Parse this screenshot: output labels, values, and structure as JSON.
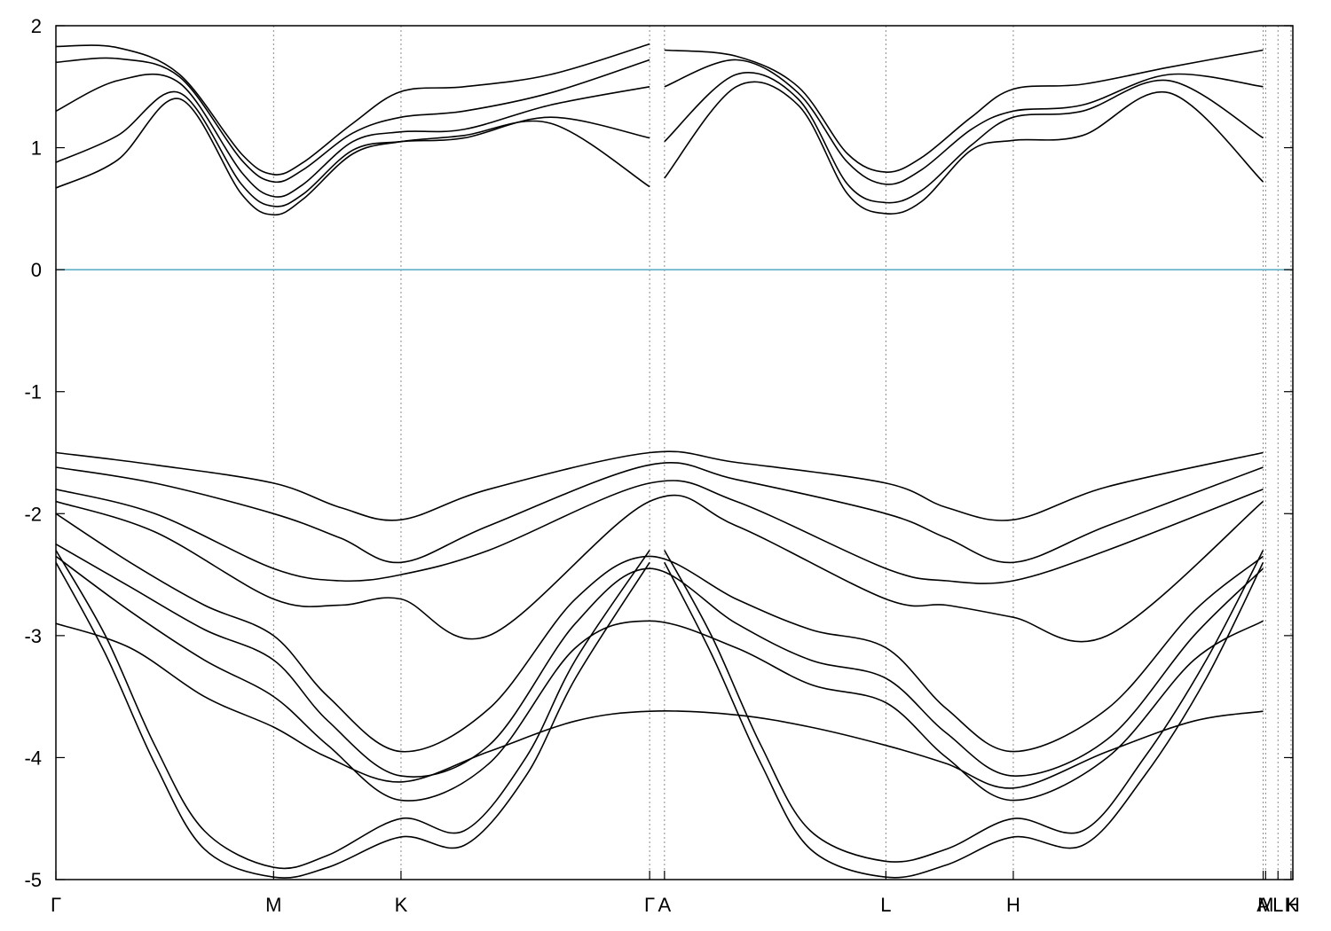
{
  "chart_data": {
    "type": "line",
    "title": "",
    "xlabel": "",
    "ylabel": "",
    "x_ticks": [
      {
        "label": "Γ",
        "x": 0.0
      },
      {
        "label": "M",
        "x": 0.176
      },
      {
        "label": "K",
        "x": 0.279
      },
      {
        "label": "Γ",
        "x": 0.48
      },
      {
        "label": "A",
        "x": 0.492
      },
      {
        "label": "L",
        "x": 0.671
      },
      {
        "label": "H",
        "x": 0.774
      },
      {
        "label": "A",
        "x": 0.976
      },
      {
        "label": "M",
        "x": 0.978
      },
      {
        "label": "L",
        "x": 0.988
      },
      {
        "label": "K",
        "x": 0.9985
      },
      {
        "label": "H",
        "x": 1.0
      }
    ],
    "y_ticks": [
      2,
      1,
      0,
      -1,
      -2,
      -3,
      -4,
      -5
    ],
    "ylim": [
      -5,
      2
    ],
    "xlim": [
      0,
      1
    ],
    "fermi_level": 0,
    "grid": "vertical dotted lines at high-symmetry points",
    "colors": {
      "bands": "#000000",
      "fermi_line": "#5fb0c8",
      "symmetry_lines": "#8a8a8a"
    },
    "series": [
      {
        "x": [
          0.0,
          0.05,
          0.1,
          0.15,
          0.176,
          0.2,
          0.24,
          0.279,
          0.33,
          0.4,
          0.48
        ],
        "values": [
          1.83,
          1.82,
          1.6,
          0.95,
          0.78,
          0.88,
          1.2,
          1.46,
          1.5,
          1.6,
          1.85
        ]
      },
      {
        "x": [
          0.0,
          0.05,
          0.1,
          0.15,
          0.176,
          0.2,
          0.24,
          0.279,
          0.33,
          0.4,
          0.48
        ],
        "values": [
          1.7,
          1.73,
          1.58,
          0.9,
          0.72,
          0.82,
          1.12,
          1.25,
          1.3,
          1.45,
          1.72
        ]
      },
      {
        "x": [
          0.0,
          0.05,
          0.1,
          0.15,
          0.176,
          0.2,
          0.24,
          0.279,
          0.33,
          0.4,
          0.48
        ],
        "values": [
          1.3,
          1.55,
          1.53,
          0.8,
          0.6,
          0.7,
          1.05,
          1.13,
          1.15,
          1.35,
          1.5
        ]
      },
      {
        "x": [
          0.0,
          0.05,
          0.1,
          0.15,
          0.176,
          0.2,
          0.24,
          0.279,
          0.33,
          0.4,
          0.48
        ],
        "values": [
          0.88,
          1.1,
          1.45,
          0.7,
          0.52,
          0.62,
          0.98,
          1.05,
          1.08,
          1.25,
          1.08
        ]
      },
      {
        "x": [
          0.0,
          0.05,
          0.1,
          0.15,
          0.176,
          0.2,
          0.24,
          0.279,
          0.33,
          0.4,
          0.48
        ],
        "values": [
          0.67,
          0.9,
          1.4,
          0.62,
          0.45,
          0.58,
          0.95,
          1.05,
          1.1,
          1.2,
          0.68
        ]
      },
      {
        "x": [
          0.492,
          0.55,
          0.6,
          0.64,
          0.671,
          0.7,
          0.74,
          0.774,
          0.83,
          0.9,
          0.976
        ],
        "values": [
          1.8,
          1.75,
          1.5,
          0.95,
          0.8,
          0.92,
          1.25,
          1.48,
          1.52,
          1.66,
          1.8
        ]
      },
      {
        "x": [
          0.492,
          0.55,
          0.6,
          0.64,
          0.671,
          0.7,
          0.74,
          0.774,
          0.83,
          0.9,
          0.976
        ],
        "values": [
          1.5,
          1.72,
          1.45,
          0.88,
          0.7,
          0.82,
          1.15,
          1.3,
          1.35,
          1.6,
          1.5
        ]
      },
      {
        "x": [
          0.492,
          0.55,
          0.6,
          0.64,
          0.671,
          0.7,
          0.74,
          0.774,
          0.83,
          0.9,
          0.976
        ],
        "values": [
          1.05,
          1.6,
          1.4,
          0.7,
          0.55,
          0.65,
          1.02,
          1.25,
          1.3,
          1.55,
          1.08
        ]
      },
      {
        "x": [
          0.492,
          0.55,
          0.6,
          0.64,
          0.671,
          0.7,
          0.74,
          0.774,
          0.83,
          0.9,
          0.976
        ],
        "values": [
          0.75,
          1.5,
          1.35,
          0.62,
          0.46,
          0.56,
          0.98,
          1.06,
          1.1,
          1.45,
          0.72
        ]
      },
      {
        "x": [
          0.0,
          0.08,
          0.176,
          0.23,
          0.279,
          0.35,
          0.48,
          0.55,
          0.671,
          0.72,
          0.774,
          0.85,
          0.976
        ],
        "values": [
          -1.5,
          -1.6,
          -1.75,
          -1.95,
          -2.05,
          -1.8,
          -1.5,
          -1.58,
          -1.75,
          -1.95,
          -2.05,
          -1.78,
          -1.5
        ]
      },
      {
        "x": [
          0.0,
          0.08,
          0.176,
          0.23,
          0.279,
          0.35,
          0.48,
          0.55,
          0.671,
          0.72,
          0.774,
          0.85,
          0.976
        ],
        "values": [
          -1.62,
          -1.75,
          -2.0,
          -2.2,
          -2.4,
          -2.1,
          -1.6,
          -1.72,
          -2.0,
          -2.2,
          -2.4,
          -2.1,
          -1.62
        ]
      },
      {
        "x": [
          0.0,
          0.08,
          0.176,
          0.23,
          0.279,
          0.35,
          0.48,
          0.55,
          0.671,
          0.72,
          0.774,
          0.85,
          0.976
        ],
        "values": [
          -1.8,
          -2.0,
          -2.45,
          -2.55,
          -2.5,
          -2.3,
          -1.75,
          -1.9,
          -2.45,
          -2.55,
          -2.55,
          -2.3,
          -1.8
        ]
      },
      {
        "x": [
          0.0,
          0.08,
          0.176,
          0.23,
          0.279,
          0.35,
          0.48,
          0.55,
          0.671,
          0.72,
          0.774,
          0.85,
          0.976
        ],
        "values": [
          -1.9,
          -2.15,
          -2.7,
          -2.75,
          -2.7,
          -3.0,
          -1.9,
          -2.1,
          -2.7,
          -2.75,
          -2.85,
          -3.0,
          -1.9
        ]
      },
      {
        "x": [
          0.0,
          0.06,
          0.12,
          0.176,
          0.22,
          0.279,
          0.35,
          0.42,
          0.48,
          0.55,
          0.61,
          0.671,
          0.72,
          0.774,
          0.85,
          0.92,
          0.976
        ],
        "values": [
          -2.0,
          -2.4,
          -2.75,
          -3.0,
          -3.5,
          -3.95,
          -3.6,
          -2.7,
          -2.35,
          -2.7,
          -2.95,
          -3.1,
          -3.6,
          -3.95,
          -3.6,
          -2.8,
          -2.35
        ]
      },
      {
        "x": [
          0.0,
          0.06,
          0.12,
          0.176,
          0.22,
          0.279,
          0.35,
          0.42,
          0.48,
          0.55,
          0.61,
          0.671,
          0.72,
          0.774,
          0.85,
          0.92,
          0.976
        ],
        "values": [
          -2.25,
          -2.6,
          -2.95,
          -3.2,
          -3.7,
          -4.15,
          -3.9,
          -2.9,
          -2.45,
          -2.9,
          -3.2,
          -3.35,
          -3.8,
          -4.15,
          -3.85,
          -3.0,
          -2.45
        ]
      },
      {
        "x": [
          0.0,
          0.06,
          0.12,
          0.176,
          0.22,
          0.279,
          0.35,
          0.42,
          0.48,
          0.55,
          0.61,
          0.671,
          0.72,
          0.774,
          0.85,
          0.92,
          0.976
        ],
        "values": [
          -2.35,
          -2.8,
          -3.2,
          -3.5,
          -3.9,
          -4.35,
          -4.05,
          -3.1,
          -2.88,
          -3.1,
          -3.4,
          -3.55,
          -4.0,
          -4.35,
          -4.0,
          -3.2,
          -2.88
        ]
      },
      {
        "x": [
          0.0,
          0.06,
          0.12,
          0.176,
          0.22,
          0.279,
          0.35,
          0.42,
          0.48,
          0.55,
          0.61,
          0.671,
          0.72,
          0.774,
          0.85,
          0.92,
          0.976
        ],
        "values": [
          -2.9,
          -3.1,
          -3.5,
          -3.75,
          -4.0,
          -4.2,
          -3.95,
          -3.7,
          -3.62,
          -3.65,
          -3.75,
          -3.9,
          -4.05,
          -4.25,
          -3.95,
          -3.7,
          -3.62
        ]
      },
      {
        "x": [
          0.0,
          0.04,
          0.08,
          0.12,
          0.176,
          0.22,
          0.279,
          0.33,
          0.38,
          0.42,
          0.48
        ],
        "values": [
          -2.3,
          -3.0,
          -3.9,
          -4.6,
          -4.9,
          -4.8,
          -4.5,
          -4.6,
          -4.0,
          -3.2,
          -2.3
        ]
      },
      {
        "x": [
          0.0,
          0.04,
          0.08,
          0.12,
          0.176,
          0.22,
          0.279,
          0.33,
          0.38,
          0.42,
          0.48
        ],
        "values": [
          -2.4,
          -3.15,
          -4.05,
          -4.75,
          -4.98,
          -4.9,
          -4.65,
          -4.72,
          -4.15,
          -3.35,
          -2.4
        ]
      },
      {
        "x": [
          0.492,
          0.53,
          0.57,
          0.61,
          0.671,
          0.72,
          0.774,
          0.83,
          0.88,
          0.93,
          0.976
        ],
        "values": [
          -2.3,
          -3.0,
          -3.9,
          -4.6,
          -4.85,
          -4.75,
          -4.5,
          -4.6,
          -4.0,
          -3.2,
          -2.3
        ]
      },
      {
        "x": [
          0.492,
          0.53,
          0.57,
          0.61,
          0.671,
          0.72,
          0.774,
          0.83,
          0.88,
          0.93,
          0.976
        ],
        "values": [
          -2.4,
          -3.15,
          -4.05,
          -4.75,
          -4.98,
          -4.88,
          -4.65,
          -4.72,
          -4.15,
          -3.35,
          -2.4
        ]
      }
    ]
  }
}
